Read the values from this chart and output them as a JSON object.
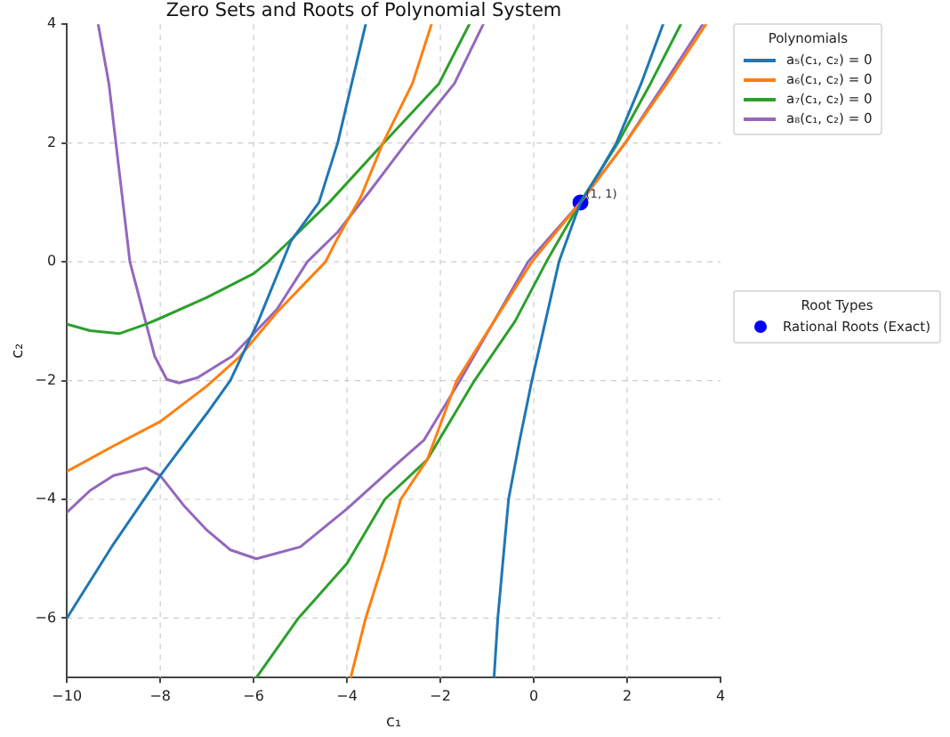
{
  "chart_data": {
    "type": "line",
    "title": "Zero Sets and Roots of Polynomial System",
    "xlabel": "c₁",
    "ylabel": "c₂",
    "legend_title": "Polynomials",
    "xlim": [
      -10,
      4
    ],
    "ylim": [
      -7,
      4
    ],
    "xticks": [
      -10,
      -8,
      -6,
      -4,
      -2,
      0,
      2,
      4
    ],
    "yticks": [
      -6,
      -4,
      -2,
      0,
      2,
      4
    ],
    "grid": true,
    "legend": "right",
    "annotations": [
      "Root Types",
      {
        "text": "(1, 1)",
        "x": 1,
        "y": 1
      }
    ],
    "series": [
      {
        "name": "a₅(c₁, c₂) = 0",
        "color": "#1f77b4",
        "x": [
          -10,
          -9,
          -8,
          -7,
          -6.5,
          -5.9,
          -5.2,
          -4.6,
          -4.2,
          -3.9,
          -3.6
        ],
        "values": [
          -6,
          -4.75,
          -3.6,
          -2.55,
          -2,
          -1,
          0.35,
          1,
          2,
          3,
          4
        ]
      },
      {
        "color": "#1f77b4",
        "x": [
          -0.85,
          -0.77,
          -0.54,
          -0.3,
          -0.04,
          0.25,
          0.54,
          1,
          1.4,
          1.77,
          2.3,
          2.77
        ],
        "values": [
          -7,
          -6,
          -4,
          -3,
          -2,
          -1,
          0,
          1,
          1.5,
          2,
          3,
          4
        ]
      },
      {
        "name": "a₆(c₁, c₂) = 0",
        "color": "#ff7f0e",
        "x": [
          -10,
          -9,
          -8,
          -7,
          -6.3,
          -5.5,
          -4.46,
          -4.2,
          -3.7,
          -3.23,
          -2.6,
          -2.19
        ],
        "values": [
          -3.53,
          -3.1,
          -2.69,
          -2.09,
          -1.6,
          -0.85,
          0,
          0.4,
          1.1,
          2,
          3,
          4
        ]
      },
      {
        "color": "#ff7f0e",
        "x": [
          -3.92,
          -3.6,
          -3.2,
          -2.85,
          -2.28,
          -1.65,
          -0.85,
          -0.04,
          1,
          1.96,
          2.85,
          3.69
        ],
        "values": [
          -7,
          -6,
          -5,
          -4,
          -3.33,
          -2,
          -1,
          0,
          1,
          2,
          3,
          4
        ]
      },
      {
        "name": "a₇(c₁, c₂) = 0",
        "color": "#2ca02c",
        "x": [
          -10,
          -9.5,
          -8.88,
          -8.3,
          -8,
          -7,
          -6,
          -5.69,
          -5.23,
          -4.38,
          -3.12,
          -2.03,
          -1.38
        ],
        "values": [
          -1.05,
          -1.16,
          -1.21,
          -1.05,
          -0.95,
          -0.6,
          -0.2,
          0,
          0.35,
          1,
          2.08,
          3,
          4
        ]
      },
      {
        "color": "#2ca02c",
        "x": [
          -5.94,
          -5.04,
          -4,
          -3.19,
          -2.28,
          -1.27,
          -0.4,
          0.27,
          1,
          1.8,
          2.5,
          3.15
        ],
        "values": [
          -7,
          -6,
          -5.08,
          -4,
          -3.33,
          -2,
          -1,
          0,
          1,
          2,
          3,
          4
        ]
      },
      {
        "name": "a₈(c₁, c₂) = 0",
        "color": "#9467bd",
        "x": [
          -9.33,
          -9.1,
          -8.95,
          -8.8,
          -8.65,
          -8.3,
          -8.12,
          -7.86,
          -7.6,
          -7.2,
          -6.46,
          -5.5,
          -4.85,
          -4.2,
          -3.5,
          -2.73,
          -1.7,
          -1.08
        ],
        "values": [
          4,
          3,
          2,
          1,
          0,
          -1.05,
          -1.59,
          -1.98,
          -2.04,
          -1.95,
          -1.59,
          -0.8,
          0,
          0.5,
          1.2,
          2,
          3,
          4
        ]
      },
      {
        "color": "#9467bd",
        "x": [
          -10,
          -9.5,
          -9,
          -8.31,
          -8,
          -7.5,
          -7,
          -6.5,
          -5.94,
          -5,
          -4,
          -3,
          -2.35,
          -1.58,
          -0.85,
          -0.12,
          1,
          1.96,
          2.8,
          3.62
        ],
        "values": [
          -4.22,
          -3.85,
          -3.6,
          -3.47,
          -3.6,
          -4.1,
          -4.52,
          -4.85,
          -5,
          -4.8,
          -4.16,
          -3.45,
          -3,
          -2,
          -1,
          0,
          1,
          2,
          3,
          4
        ]
      },
      {
        "name": "Rational Roots (Exact)",
        "type": "scatter",
        "marker": "circle",
        "color": "#0000ff",
        "x": [
          1
        ],
        "values": [
          1
        ]
      }
    ]
  }
}
